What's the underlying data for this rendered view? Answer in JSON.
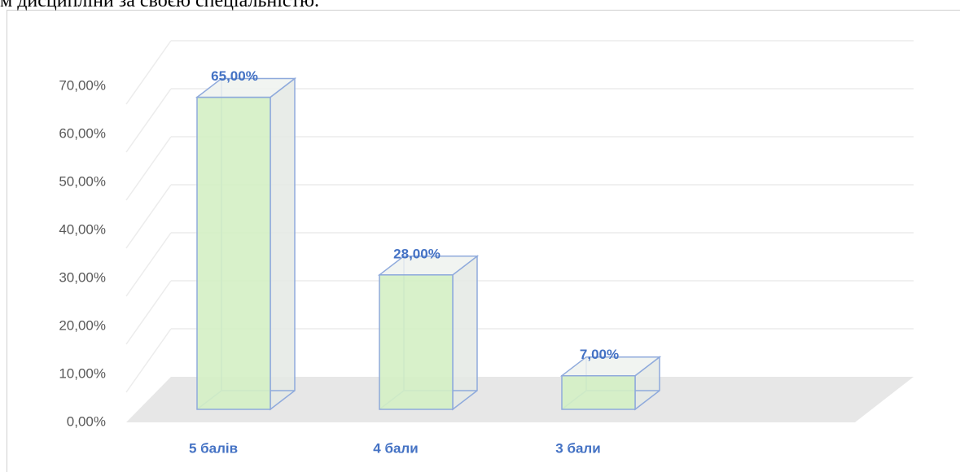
{
  "caption": "м дисципліни за своєю спеціальністю.",
  "chart_data": {
    "type": "bar3d",
    "categories": [
      "5 балів",
      "4 бали",
      "3 бали"
    ],
    "values": [
      65,
      28,
      7
    ],
    "value_labels": [
      "65,00%",
      "28,00%",
      "7,00%"
    ],
    "color": "#d4efc4",
    "ylim": [
      0,
      70
    ],
    "yticks": [
      {
        "value": 0,
        "label": "0,00%"
      },
      {
        "value": 10,
        "label": "10,00%"
      },
      {
        "value": 20,
        "label": "20,00%"
      },
      {
        "value": 30,
        "label": "30,00%"
      },
      {
        "value": 40,
        "label": "40,00%"
      },
      {
        "value": 50,
        "label": "50,00%"
      },
      {
        "value": 60,
        "label": "60,00%"
      },
      {
        "value": 70,
        "label": "70,00%"
      }
    ],
    "grid": true
  }
}
